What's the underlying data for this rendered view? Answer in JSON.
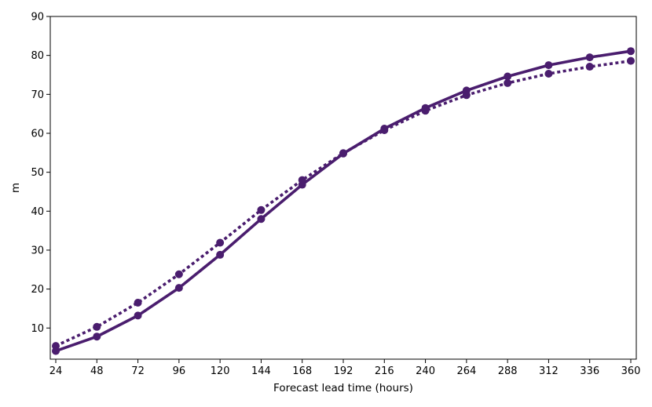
{
  "chart_data": {
    "type": "line",
    "xlabel": "Forecast lead time (hours)",
    "ylabel": "m",
    "xlim": [
      24,
      360
    ],
    "ylim": [
      2,
      90
    ],
    "x": [
      24,
      48,
      72,
      96,
      120,
      144,
      168,
      192,
      216,
      240,
      264,
      288,
      312,
      336,
      360
    ],
    "xticks": [
      24,
      48,
      72,
      96,
      120,
      144,
      168,
      192,
      216,
      240,
      264,
      288,
      312,
      336,
      360
    ],
    "yticks": [
      10,
      20,
      30,
      40,
      50,
      60,
      70,
      80,
      90
    ],
    "grid": false,
    "series": [
      {
        "style": "solid",
        "color": "#4a1d6e",
        "values": [
          4.1,
          7.8,
          13.2,
          20.3,
          28.8,
          38.0,
          46.8,
          54.8,
          61.2,
          66.5,
          71.0,
          74.6,
          77.5,
          79.5,
          81.1
        ]
      },
      {
        "style": "dotted",
        "color": "#4a1d6e",
        "values": [
          5.4,
          10.3,
          16.5,
          23.8,
          31.9,
          40.3,
          48.0,
          54.9,
          60.8,
          65.8,
          69.8,
          72.9,
          75.3,
          77.1,
          78.6
        ]
      }
    ]
  }
}
